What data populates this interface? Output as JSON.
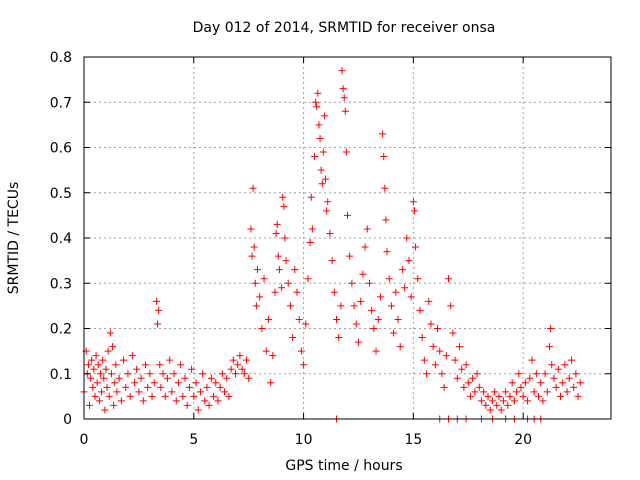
{
  "chart_data": {
    "type": "scatter",
    "title": "Day 012 of 2014, SRMTID for receiver onsa",
    "xlabel": "GPS time / hours",
    "ylabel": "SRMTID / TECUs",
    "xlim": [
      0,
      24
    ],
    "ylim": [
      0,
      0.8
    ],
    "xticks": [
      0,
      5,
      10,
      15,
      20
    ],
    "yticks": [
      0,
      0.1,
      0.2,
      0.3,
      0.4,
      0.5,
      0.6,
      0.7,
      0.8
    ],
    "xtick_labels": [
      "0",
      "5",
      "10",
      "15",
      "20"
    ],
    "ytick_labels": [
      "0",
      "0.1",
      "0.2",
      "0.3",
      "0.4",
      "0.5",
      "0.6",
      "0.7",
      "0.8"
    ],
    "grid": true,
    "marker": "+",
    "color": "#ff0000",
    "series": [
      {
        "name": "SRMTID",
        "points": [
          [
            0.0,
            0.06
          ],
          [
            0.1,
            0.15
          ],
          [
            0.15,
            0.1
          ],
          [
            0.2,
            0.12
          ],
          [
            0.25,
            0.03
          ],
          [
            0.3,
            0.09
          ],
          [
            0.35,
            0.13
          ],
          [
            0.4,
            0.07
          ],
          [
            0.45,
            0.11
          ],
          [
            0.5,
            0.05
          ],
          [
            0.55,
            0.14
          ],
          [
            0.6,
            0.08
          ],
          [
            0.65,
            0.12
          ],
          [
            0.7,
            0.04
          ],
          [
            0.75,
            0.1
          ],
          [
            0.8,
            0.06
          ],
          [
            0.85,
            0.13
          ],
          [
            0.9,
            0.09
          ],
          [
            0.95,
            0.02
          ],
          [
            1.0,
            0.11
          ],
          [
            1.05,
            0.07
          ],
          [
            1.1,
            0.15
          ],
          [
            1.15,
            0.05
          ],
          [
            1.2,
            0.19
          ],
          [
            1.25,
            0.1
          ],
          [
            1.3,
            0.16
          ],
          [
            1.35,
            0.03
          ],
          [
            1.4,
            0.08
          ],
          [
            1.45,
            0.12
          ],
          [
            1.5,
            0.06
          ],
          [
            1.6,
            0.09
          ],
          [
            1.7,
            0.04
          ],
          [
            1.8,
            0.13
          ],
          [
            1.9,
            0.07
          ],
          [
            2.0,
            0.1
          ],
          [
            2.1,
            0.05
          ],
          [
            2.2,
            0.14
          ],
          [
            2.3,
            0.08
          ],
          [
            2.4,
            0.11
          ],
          [
            2.5,
            0.06
          ],
          [
            2.6,
            0.09
          ],
          [
            2.7,
            0.04
          ],
          [
            2.8,
            0.12
          ],
          [
            2.9,
            0.07
          ],
          [
            3.0,
            0.1
          ],
          [
            3.1,
            0.05
          ],
          [
            3.2,
            0.08
          ],
          [
            3.3,
            0.26
          ],
          [
            3.35,
            0.21
          ],
          [
            3.4,
            0.24
          ],
          [
            3.45,
            0.12
          ],
          [
            3.5,
            0.07
          ],
          [
            3.6,
            0.1
          ],
          [
            3.7,
            0.05
          ],
          [
            3.8,
            0.09
          ],
          [
            3.9,
            0.13
          ],
          [
            4.0,
            0.06
          ],
          [
            4.1,
            0.1
          ],
          [
            4.2,
            0.04
          ],
          [
            4.3,
            0.08
          ],
          [
            4.4,
            0.12
          ],
          [
            4.5,
            0.05
          ],
          [
            4.6,
            0.09
          ],
          [
            4.7,
            0.03
          ],
          [
            4.8,
            0.07
          ],
          [
            4.9,
            0.11
          ],
          [
            5.0,
            0.05
          ],
          [
            5.1,
            0.08
          ],
          [
            5.2,
            0.02
          ],
          [
            5.3,
            0.06
          ],
          [
            5.4,
            0.1
          ],
          [
            5.5,
            0.04
          ],
          [
            5.6,
            0.07
          ],
          [
            5.7,
            0.03
          ],
          [
            5.8,
            0.09
          ],
          [
            5.9,
            0.05
          ],
          [
            6.0,
            0.08
          ],
          [
            6.1,
            0.04
          ],
          [
            6.2,
            0.07
          ],
          [
            6.3,
            0.1
          ],
          [
            6.4,
            0.06
          ],
          [
            6.5,
            0.09
          ],
          [
            6.6,
            0.05
          ],
          [
            6.7,
            0.11
          ],
          [
            6.8,
            0.13
          ],
          [
            6.9,
            0.1
          ],
          [
            7.0,
            0.12
          ],
          [
            7.1,
            0.14
          ],
          [
            7.2,
            0.11
          ],
          [
            7.3,
            0.1
          ],
          [
            7.4,
            0.13
          ],
          [
            7.5,
            0.09
          ],
          [
            7.6,
            0.42
          ],
          [
            7.65,
            0.36
          ],
          [
            7.7,
            0.51
          ],
          [
            7.75,
            0.38
          ],
          [
            7.8,
            0.3
          ],
          [
            7.85,
            0.25
          ],
          [
            7.9,
            0.33
          ],
          [
            8.0,
            0.27
          ],
          [
            8.1,
            0.2
          ],
          [
            8.2,
            0.31
          ],
          [
            8.3,
            0.15
          ],
          [
            8.4,
            0.22
          ],
          [
            8.5,
            0.08
          ],
          [
            8.6,
            0.14
          ],
          [
            8.7,
            0.28
          ],
          [
            8.75,
            0.41
          ],
          [
            8.8,
            0.43
          ],
          [
            8.85,
            0.36
          ],
          [
            8.9,
            0.33
          ],
          [
            9.0,
            0.29
          ],
          [
            9.05,
            0.49
          ],
          [
            9.1,
            0.47
          ],
          [
            9.15,
            0.4
          ],
          [
            9.2,
            0.35
          ],
          [
            9.3,
            0.3
          ],
          [
            9.4,
            0.25
          ],
          [
            9.5,
            0.18
          ],
          [
            9.6,
            0.33
          ],
          [
            9.7,
            0.28
          ],
          [
            9.8,
            0.22
          ],
          [
            9.9,
            0.15
          ],
          [
            10.0,
            0.12
          ],
          [
            10.1,
            0.21
          ],
          [
            10.2,
            0.31
          ],
          [
            10.3,
            0.39
          ],
          [
            10.35,
            0.49
          ],
          [
            10.4,
            0.42
          ],
          [
            10.5,
            0.58
          ],
          [
            10.55,
            0.7
          ],
          [
            10.6,
            0.69
          ],
          [
            10.65,
            0.72
          ],
          [
            10.7,
            0.65
          ],
          [
            10.75,
            0.62
          ],
          [
            10.8,
            0.55
          ],
          [
            10.85,
            0.52
          ],
          [
            10.9,
            0.59
          ],
          [
            10.95,
            0.67
          ],
          [
            11.0,
            0.53
          ],
          [
            11.05,
            0.46
          ],
          [
            11.1,
            0.48
          ],
          [
            11.2,
            0.41
          ],
          [
            11.3,
            0.35
          ],
          [
            11.4,
            0.28
          ],
          [
            11.5,
            0.22
          ],
          [
            11.6,
            0.18
          ],
          [
            11.7,
            0.25
          ],
          [
            11.75,
            0.77
          ],
          [
            11.8,
            0.73
          ],
          [
            11.85,
            0.71
          ],
          [
            11.9,
            0.68
          ],
          [
            11.95,
            0.59
          ],
          [
            12.0,
            0.45
          ],
          [
            12.1,
            0.36
          ],
          [
            12.2,
            0.3
          ],
          [
            12.3,
            0.25
          ],
          [
            12.4,
            0.21
          ],
          [
            12.5,
            0.17
          ],
          [
            12.6,
            0.26
          ],
          [
            12.7,
            0.32
          ],
          [
            12.8,
            0.38
          ],
          [
            12.9,
            0.42
          ],
          [
            13.0,
            0.3
          ],
          [
            13.1,
            0.24
          ],
          [
            13.2,
            0.2
          ],
          [
            13.3,
            0.15
          ],
          [
            13.4,
            0.22
          ],
          [
            13.5,
            0.27
          ],
          [
            13.6,
            0.63
          ],
          [
            13.65,
            0.58
          ],
          [
            13.7,
            0.51
          ],
          [
            13.75,
            0.44
          ],
          [
            13.8,
            0.37
          ],
          [
            13.9,
            0.31
          ],
          [
            14.0,
            0.25
          ],
          [
            14.1,
            0.19
          ],
          [
            14.2,
            0.28
          ],
          [
            14.3,
            0.22
          ],
          [
            14.4,
            0.16
          ],
          [
            14.5,
            0.33
          ],
          [
            14.6,
            0.29
          ],
          [
            14.7,
            0.4
          ],
          [
            14.8,
            0.35
          ],
          [
            14.9,
            0.27
          ],
          [
            15.0,
            0.48
          ],
          [
            15.05,
            0.46
          ],
          [
            15.1,
            0.38
          ],
          [
            15.2,
            0.31
          ],
          [
            15.3,
            0.24
          ],
          [
            15.4,
            0.18
          ],
          [
            15.5,
            0.13
          ],
          [
            15.6,
            0.1
          ],
          [
            15.7,
            0.26
          ],
          [
            15.8,
            0.21
          ],
          [
            15.9,
            0.16
          ],
          [
            16.0,
            0.12
          ],
          [
            16.1,
            0.2
          ],
          [
            16.2,
            0.15
          ],
          [
            16.3,
            0.1
          ],
          [
            16.4,
            0.07
          ],
          [
            16.5,
            0.14
          ],
          [
            16.6,
            0.31
          ],
          [
            16.7,
            0.25
          ],
          [
            16.8,
            0.19
          ],
          [
            16.9,
            0.13
          ],
          [
            17.0,
            0.09
          ],
          [
            17.1,
            0.16
          ],
          [
            17.2,
            0.11
          ],
          [
            17.3,
            0.07
          ],
          [
            17.4,
            0.12
          ],
          [
            17.5,
            0.08
          ],
          [
            17.6,
            0.05
          ],
          [
            17.7,
            0.09
          ],
          [
            17.8,
            0.06
          ],
          [
            17.9,
            0.1
          ],
          [
            18.0,
            0.07
          ],
          [
            18.1,
            0.04
          ],
          [
            18.2,
            0.06
          ],
          [
            18.3,
            0.03
          ],
          [
            18.4,
            0.05
          ],
          [
            18.5,
            0.02
          ],
          [
            18.6,
            0.04
          ],
          [
            18.7,
            0.06
          ],
          [
            18.8,
            0.03
          ],
          [
            18.9,
            0.05
          ],
          [
            19.0,
            0.02
          ],
          [
            19.1,
            0.04
          ],
          [
            19.2,
            0.06
          ],
          [
            19.3,
            0.03
          ],
          [
            19.4,
            0.05
          ],
          [
            19.5,
            0.08
          ],
          [
            19.6,
            0.04
          ],
          [
            19.7,
            0.06
          ],
          [
            19.8,
            0.1
          ],
          [
            19.9,
            0.07
          ],
          [
            20.0,
            0.05
          ],
          [
            20.1,
            0.08
          ],
          [
            20.2,
            0.04
          ],
          [
            20.3,
            0.09
          ],
          [
            20.4,
            0.13
          ],
          [
            20.5,
            0.06
          ],
          [
            20.6,
            0.1
          ],
          [
            20.7,
            0.05
          ],
          [
            20.8,
            0.08
          ],
          [
            20.9,
            0.04
          ],
          [
            21.0,
            0.1
          ],
          [
            21.1,
            0.06
          ],
          [
            21.2,
            0.16
          ],
          [
            21.25,
            0.2
          ],
          [
            21.3,
            0.12
          ],
          [
            21.4,
            0.09
          ],
          [
            21.5,
            0.07
          ],
          [
            21.6,
            0.11
          ],
          [
            21.7,
            0.05
          ],
          [
            21.8,
            0.08
          ],
          [
            21.9,
            0.12
          ],
          [
            22.0,
            0.06
          ],
          [
            22.1,
            0.09
          ],
          [
            22.2,
            0.13
          ],
          [
            22.3,
            0.07
          ],
          [
            22.4,
            0.1
          ],
          [
            22.5,
            0.05
          ],
          [
            22.6,
            0.08
          ],
          [
            11.5,
            0.0
          ],
          [
            16.2,
            0.0
          ],
          [
            16.6,
            0.0
          ],
          [
            17.0,
            0.0
          ],
          [
            17.4,
            0.0
          ],
          [
            18.1,
            0.0
          ],
          [
            18.6,
            0.0
          ],
          [
            19.2,
            0.0
          ],
          [
            19.6,
            0.0
          ],
          [
            20.2,
            0.0
          ],
          [
            20.5,
            0.0
          ],
          [
            20.8,
            0.0
          ]
        ]
      }
    ]
  }
}
